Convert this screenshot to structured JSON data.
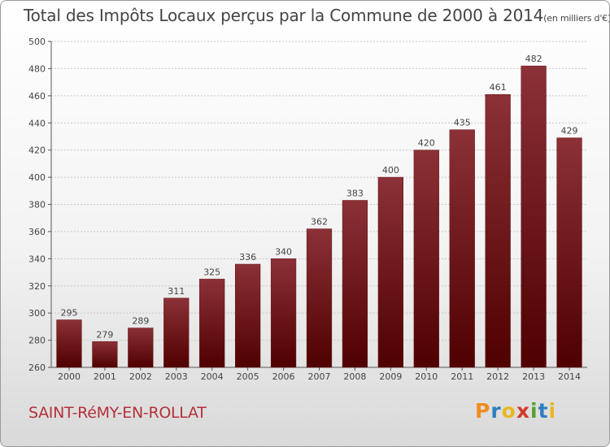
{
  "header": {
    "title": "Total des Impôts Locaux perçus par la Commune de 2000 à 2014",
    "unit": "(en milliers d'€)"
  },
  "footer": {
    "commune": "SAINT-RéMY-EN-ROLLAT",
    "logo_letters": [
      "P",
      "r",
      "o",
      "x",
      "i",
      "t",
      "i"
    ],
    "logo_colors": [
      "#f08c1e",
      "#2d7fc1",
      "#e8b820",
      "#d33a2c",
      "#5aa02c",
      "#2d7fc1",
      "#e8b820"
    ]
  },
  "chart_data": {
    "type": "bar",
    "title": "Total des Impôts Locaux perçus par la Commune de 2000 à 2014",
    "xlabel": "",
    "ylabel": "",
    "ylim": [
      260,
      500
    ],
    "yticks": [
      260,
      280,
      300,
      320,
      340,
      360,
      380,
      400,
      420,
      440,
      460,
      480,
      500
    ],
    "categories": [
      "2000",
      "2001",
      "2002",
      "2003",
      "2004",
      "2005",
      "2006",
      "2007",
      "2008",
      "2009",
      "2010",
      "2011",
      "2012",
      "2013",
      "2014"
    ],
    "values": [
      295,
      279,
      289,
      311,
      325,
      336,
      340,
      362,
      383,
      400,
      420,
      435,
      461,
      482,
      429
    ],
    "bar_color_top": "#8b3137",
    "bar_color_bottom": "#4f0000",
    "grid": true
  }
}
